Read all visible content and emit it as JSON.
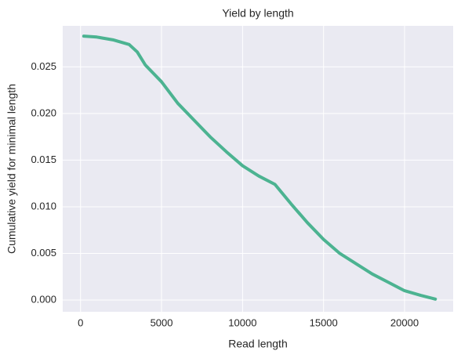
{
  "chart_data": {
    "type": "line",
    "title": "Yield by length",
    "x_label": "Read length",
    "y_label": "Cumulative yield for minimal length",
    "x": [
      200,
      1000,
      2000,
      3000,
      3500,
      4000,
      5000,
      6000,
      7000,
      8000,
      9000,
      10000,
      11000,
      12000,
      13000,
      14000,
      15000,
      16000,
      17000,
      18000,
      19000,
      20000,
      21000,
      21900
    ],
    "series": [
      {
        "color": "#4cb391",
        "values": [
          0.0283,
          0.0282,
          0.0279,
          0.0274,
          0.0266,
          0.0252,
          0.0234,
          0.0211,
          0.0193,
          0.0175,
          0.0159,
          0.0144,
          0.0133,
          0.0124,
          0.0103,
          0.0083,
          0.0065,
          0.005,
          0.0039,
          0.0028,
          0.0019,
          0.001,
          0.0005,
          0.0001
        ]
      }
    ],
    "xlim": [
      -1100,
      23000
    ],
    "ylim": [
      -0.00126,
      0.0294
    ],
    "xticks": [
      0,
      5000,
      10000,
      15000,
      20000
    ],
    "yticks": [
      {
        "value": 0,
        "label": "0.000"
      },
      {
        "value": 0.005,
        "label": "0.005"
      },
      {
        "value": 0.01,
        "label": "0.010"
      },
      {
        "value": 0.015,
        "label": "0.015"
      },
      {
        "value": 0.02,
        "label": "0.020"
      },
      {
        "value": 0.025,
        "label": "0.025"
      }
    ],
    "grid": true
  }
}
